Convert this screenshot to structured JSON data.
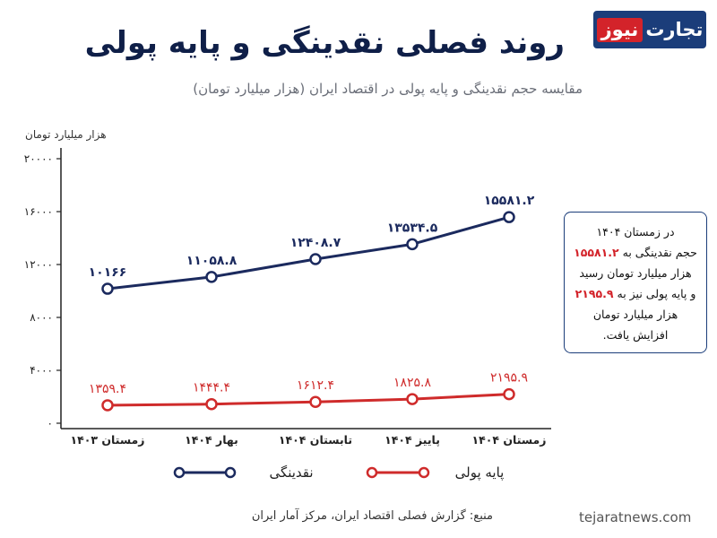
{
  "logo": {
    "part_red": "نیوز",
    "part_white": "تجارت"
  },
  "title": "روند فصلی نقدینگی و پایه پولی",
  "subtitle": "مقایسه حجم نقدینگی و پایه پولی در اقتصاد ایران (هزار میلیارد تومان)",
  "unit_label": "هزار میلیارد تومان",
  "note": {
    "line1": "در زمستان ۱۴۰۴",
    "line2_prefix": "حجم نقدینگی به",
    "line2_value": "۱۵۵۸۱.۲",
    "line3": "هزار میلیارد تومان رسید",
    "line4_prefix": "و پایه پولی نیز به",
    "line4_value": "۲۱۹۵.۹",
    "line5": "هزار میلیارد تومان",
    "line6": "افزایش یافت."
  },
  "source": "منبع: گزارش فصلی اقتصاد ایران، مرکز آمار ایران",
  "site": "tejaratnews.com",
  "colors": {
    "liquidity": "#1b2a5e",
    "base_money": "#cf2b2b",
    "accent_blue": "#1b3d7a"
  },
  "chart_data": {
    "type": "line",
    "categories": [
      "زمستان ۱۴۰۳",
      "بهار ۱۴۰۴",
      "تابستان ۱۴۰۴",
      "پاییز ۱۴۰۴",
      "زمستان ۱۴۰۴"
    ],
    "ylim": [
      0,
      20000
    ],
    "yticks": [
      0,
      4000,
      8000,
      12000,
      16000,
      20000
    ],
    "ytick_labels": [
      "۰",
      "۴۰۰۰",
      "۸۰۰۰",
      "۱۲۰۰۰",
      "۱۶۰۰۰",
      "۲۰۰۰۰"
    ],
    "grid": false,
    "legend_position": "bottom",
    "series": [
      {
        "name": "نقدینگی",
        "color": "#1b2a5e",
        "values": [
          10166,
          11058.8,
          12408.7,
          13534.5,
          15581.2
        ],
        "labels": [
          "۱۰۱۶۶",
          "۱۱۰۵۸.۸",
          "۱۲۴۰۸.۷",
          "۱۳۵۳۴.۵",
          "۱۵۵۸۱.۲"
        ]
      },
      {
        "name": "پایه پولی",
        "color": "#cf2b2b",
        "values": [
          1359.4,
          1444.4,
          1612.4,
          1825.8,
          2195.9
        ],
        "labels": [
          "۱۳۵۹.۴",
          "۱۴۴۴.۴",
          "۱۶۱۲.۴",
          "۱۸۲۵.۸",
          "۲۱۹۵.۹"
        ]
      }
    ]
  }
}
